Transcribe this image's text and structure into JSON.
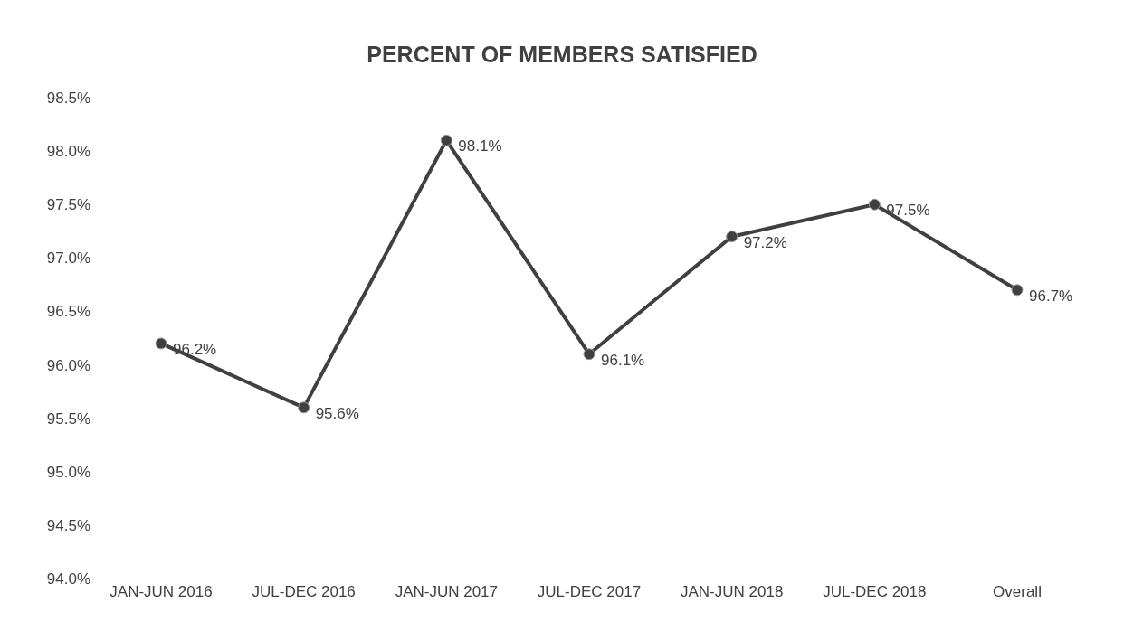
{
  "chart_data": {
    "type": "line",
    "title": "PERCENT OF MEMBERS SATISFIED",
    "categories": [
      "JAN-JUN 2016",
      "JUL-DEC 2016",
      "JAN-JUN 2017",
      "JUL-DEC 2017",
      "JAN-JUN 2018",
      "JUL-DEC 2018",
      "Overall"
    ],
    "series": [
      {
        "color": "#404040",
        "values": [
          96.2,
          95.6,
          98.1,
          96.1,
          97.2,
          97.5,
          96.7
        ],
        "value_labels": [
          "96.2%",
          "95.6%",
          "98.1%",
          "96.1%",
          "97.2%",
          "97.5%",
          "96.7%"
        ]
      }
    ],
    "ylim": [
      94.0,
      98.5
    ],
    "yticks": [
      {
        "value": 94.0,
        "label": "94.0%"
      },
      {
        "value": 94.5,
        "label": "94.5%"
      },
      {
        "value": 95.0,
        "label": "95.0%"
      },
      {
        "value": 95.5,
        "label": "95.5%"
      },
      {
        "value": 96.0,
        "label": "96.0%"
      },
      {
        "value": 96.5,
        "label": "96.5%"
      },
      {
        "value": 97.0,
        "label": "97.0%"
      },
      {
        "value": 97.5,
        "label": "97.5%"
      },
      {
        "value": 98.0,
        "label": "98.0%"
      },
      {
        "value": 98.5,
        "label": "98.5%"
      }
    ],
    "grid": false,
    "legend": false,
    "marker": "circle",
    "line_style": "solid"
  }
}
